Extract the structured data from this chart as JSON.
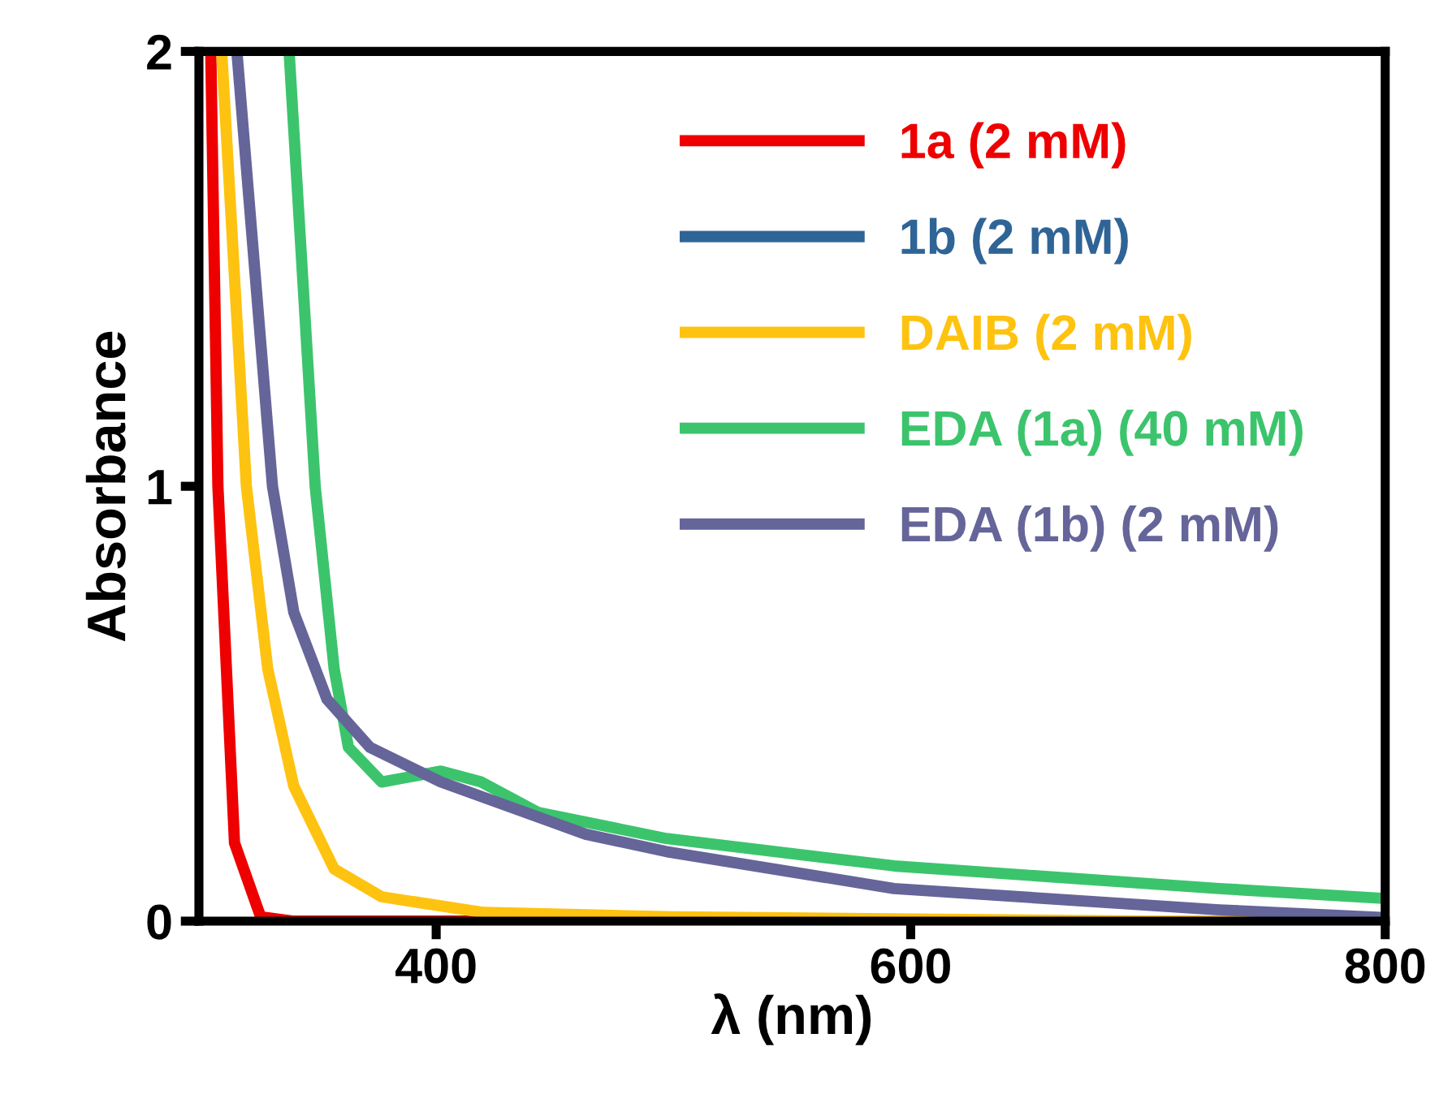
{
  "chart_data": {
    "type": "line",
    "xlabel": "λ (nm)",
    "ylabel": "Absorbance",
    "xlim": [
      300,
      800
    ],
    "ylim": [
      0,
      2
    ],
    "xticks": [
      400,
      600,
      800
    ],
    "yticks": [
      0,
      1,
      2
    ],
    "grid": false,
    "legend": "top right",
    "marker": "none",
    "line_style": "solid",
    "series": [
      {
        "name": "1a (2 mM)",
        "color": "#ee0000",
        "x": [
          305,
          308,
          315,
          326,
          340,
          400,
          600,
          800
        ],
        "values": [
          2,
          1.0,
          0.18,
          0.01,
          0,
          0,
          0,
          0
        ]
      },
      {
        "name": "1b (2 mM)",
        "color": "#2f6496"
      },
      {
        "name": "DAIB (2 mM)",
        "color": "#fec310",
        "x": [
          309.6,
          320,
          329,
          340,
          357,
          377,
          420,
          500,
          700,
          800
        ],
        "values": [
          2,
          1.0,
          0.58,
          0.31,
          0.12,
          0.056,
          0.02,
          0.01,
          0,
          0
        ]
      },
      {
        "name": "EDA (1a) (40 mM)",
        "color": "#3cc46d",
        "x": [
          338,
          349,
          357,
          363,
          377,
          402,
          419,
          443,
          497,
          593,
          730,
          800
        ],
        "values": [
          2,
          1.0,
          0.58,
          0.4,
          0.32,
          0.345,
          0.32,
          0.25,
          0.19,
          0.127,
          0.075,
          0.052
        ]
      },
      {
        "name": "EDA (1b) (2 mM)",
        "color": "#65659a",
        "x": [
          316,
          331,
          340,
          354,
          372,
          402,
          463,
          497,
          593,
          730,
          800
        ],
        "values": [
          2,
          1.0,
          0.71,
          0.51,
          0.4,
          0.32,
          0.2,
          0.16,
          0.075,
          0.026,
          0.008
        ]
      }
    ]
  }
}
